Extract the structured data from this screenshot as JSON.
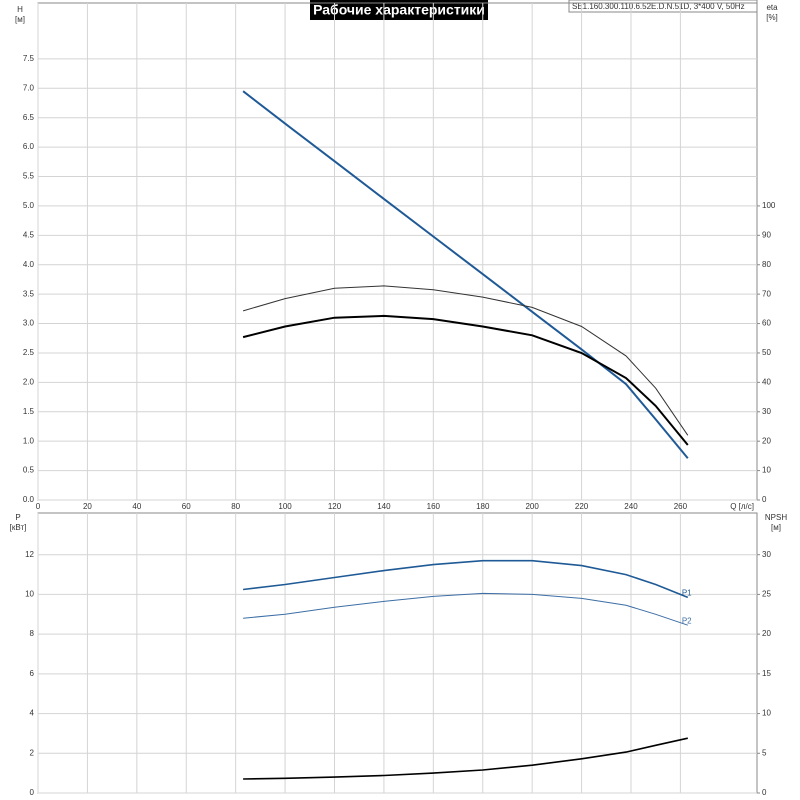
{
  "chart_data": [
    {
      "type": "line",
      "title": "Рабочие характеристики",
      "subtitle": "SE1.160.300.110.6.52E.D.N.51D, 3*400 V, 50Hz",
      "ylabel": "H",
      "ylabel_unit": "[м]",
      "y2label": "eta",
      "y2label_unit": "[%]",
      "xlabel": "Q [л/с]",
      "x": [
        83,
        100,
        120,
        140,
        160,
        180,
        200,
        220,
        238,
        250,
        263
      ],
      "xlim": [
        0,
        291
      ],
      "xticks": [
        0,
        20,
        40,
        60,
        80,
        100,
        120,
        140,
        160,
        180,
        200,
        220,
        240,
        260
      ],
      "ylim": [
        0,
        8.45
      ],
      "yticks": [
        {
          "value": 0,
          "label": "0.0"
        },
        0.5,
        {
          "value": 1,
          "label": "1.0"
        },
        1.5,
        {
          "value": 2,
          "label": "2.0"
        },
        2.5,
        {
          "value": 3,
          "label": "3.0"
        },
        3.5,
        {
          "value": 4,
          "label": "4.0"
        },
        4.5,
        {
          "value": 5,
          "label": "5.0"
        },
        5.5,
        {
          "value": 6,
          "label": "6.0"
        },
        6.5,
        {
          "value": 7,
          "label": "7.0"
        },
        7.5
      ],
      "y2lim": [
        0,
        169
      ],
      "y2ticks": [
        0,
        10,
        20,
        30,
        40,
        50,
        60,
        70,
        80,
        90,
        100
      ],
      "grid": true,
      "series": [
        {
          "color": "#1f5a96",
          "line_width": 2,
          "values": [
            6.95,
            6.4,
            5.76,
            5.12,
            4.48,
            3.84,
            3.2,
            2.56,
            1.97,
            1.37,
            0.71
          ]
        },
        {
          "color": "#333333",
          "line_width": 1,
          "axis": "y2",
          "values": [
            64.3,
            68.5,
            72,
            72.8,
            71.5,
            69,
            65.5,
            59,
            49,
            38,
            22
          ]
        },
        {
          "color": "#000000",
          "line_width": 2,
          "axis": "y2",
          "values": [
            55.4,
            59,
            62,
            62.6,
            61.5,
            59,
            56,
            50,
            41.5,
            32,
            18.7
          ]
        }
      ]
    },
    {
      "type": "line",
      "ylabel": "P",
      "ylabel_unit": "[кВт]",
      "y2label": "NPSH",
      "y2label_unit": "[м]",
      "x": [
        83,
        100,
        120,
        140,
        160,
        180,
        200,
        220,
        238,
        250,
        263
      ],
      "xlim": [
        0,
        291
      ],
      "xticks": [
        0,
        20,
        40,
        60,
        80,
        100,
        120,
        140,
        160,
        180,
        200,
        220,
        240,
        260
      ],
      "ylim": [
        0,
        14.1
      ],
      "yticks": [
        0,
        2,
        4,
        6,
        8,
        10,
        12
      ],
      "y2lim": [
        0,
        35.25
      ],
      "y2ticks": [
        0,
        5,
        10,
        15,
        20,
        25,
        30
      ],
      "grid": true,
      "series": [
        {
          "name": "P1",
          "color": "#1f5a96",
          "line_width": 1.6,
          "values": [
            10.25,
            10.5,
            10.85,
            11.2,
            11.5,
            11.7,
            11.7,
            11.45,
            11.0,
            10.5,
            9.85
          ]
        },
        {
          "name": "P2",
          "color": "#3c6ea5",
          "line_width": 1,
          "values": [
            8.8,
            9.0,
            9.35,
            9.65,
            9.9,
            10.05,
            10.0,
            9.8,
            9.45,
            9.0,
            8.45
          ]
        },
        {
          "color": "#000000",
          "line_width": 1.6,
          "axis": "y2",
          "values": [
            1.76,
            1.85,
            2.0,
            2.2,
            2.5,
            2.9,
            3.5,
            4.3,
            5.15,
            6.0,
            6.9
          ]
        }
      ]
    }
  ]
}
